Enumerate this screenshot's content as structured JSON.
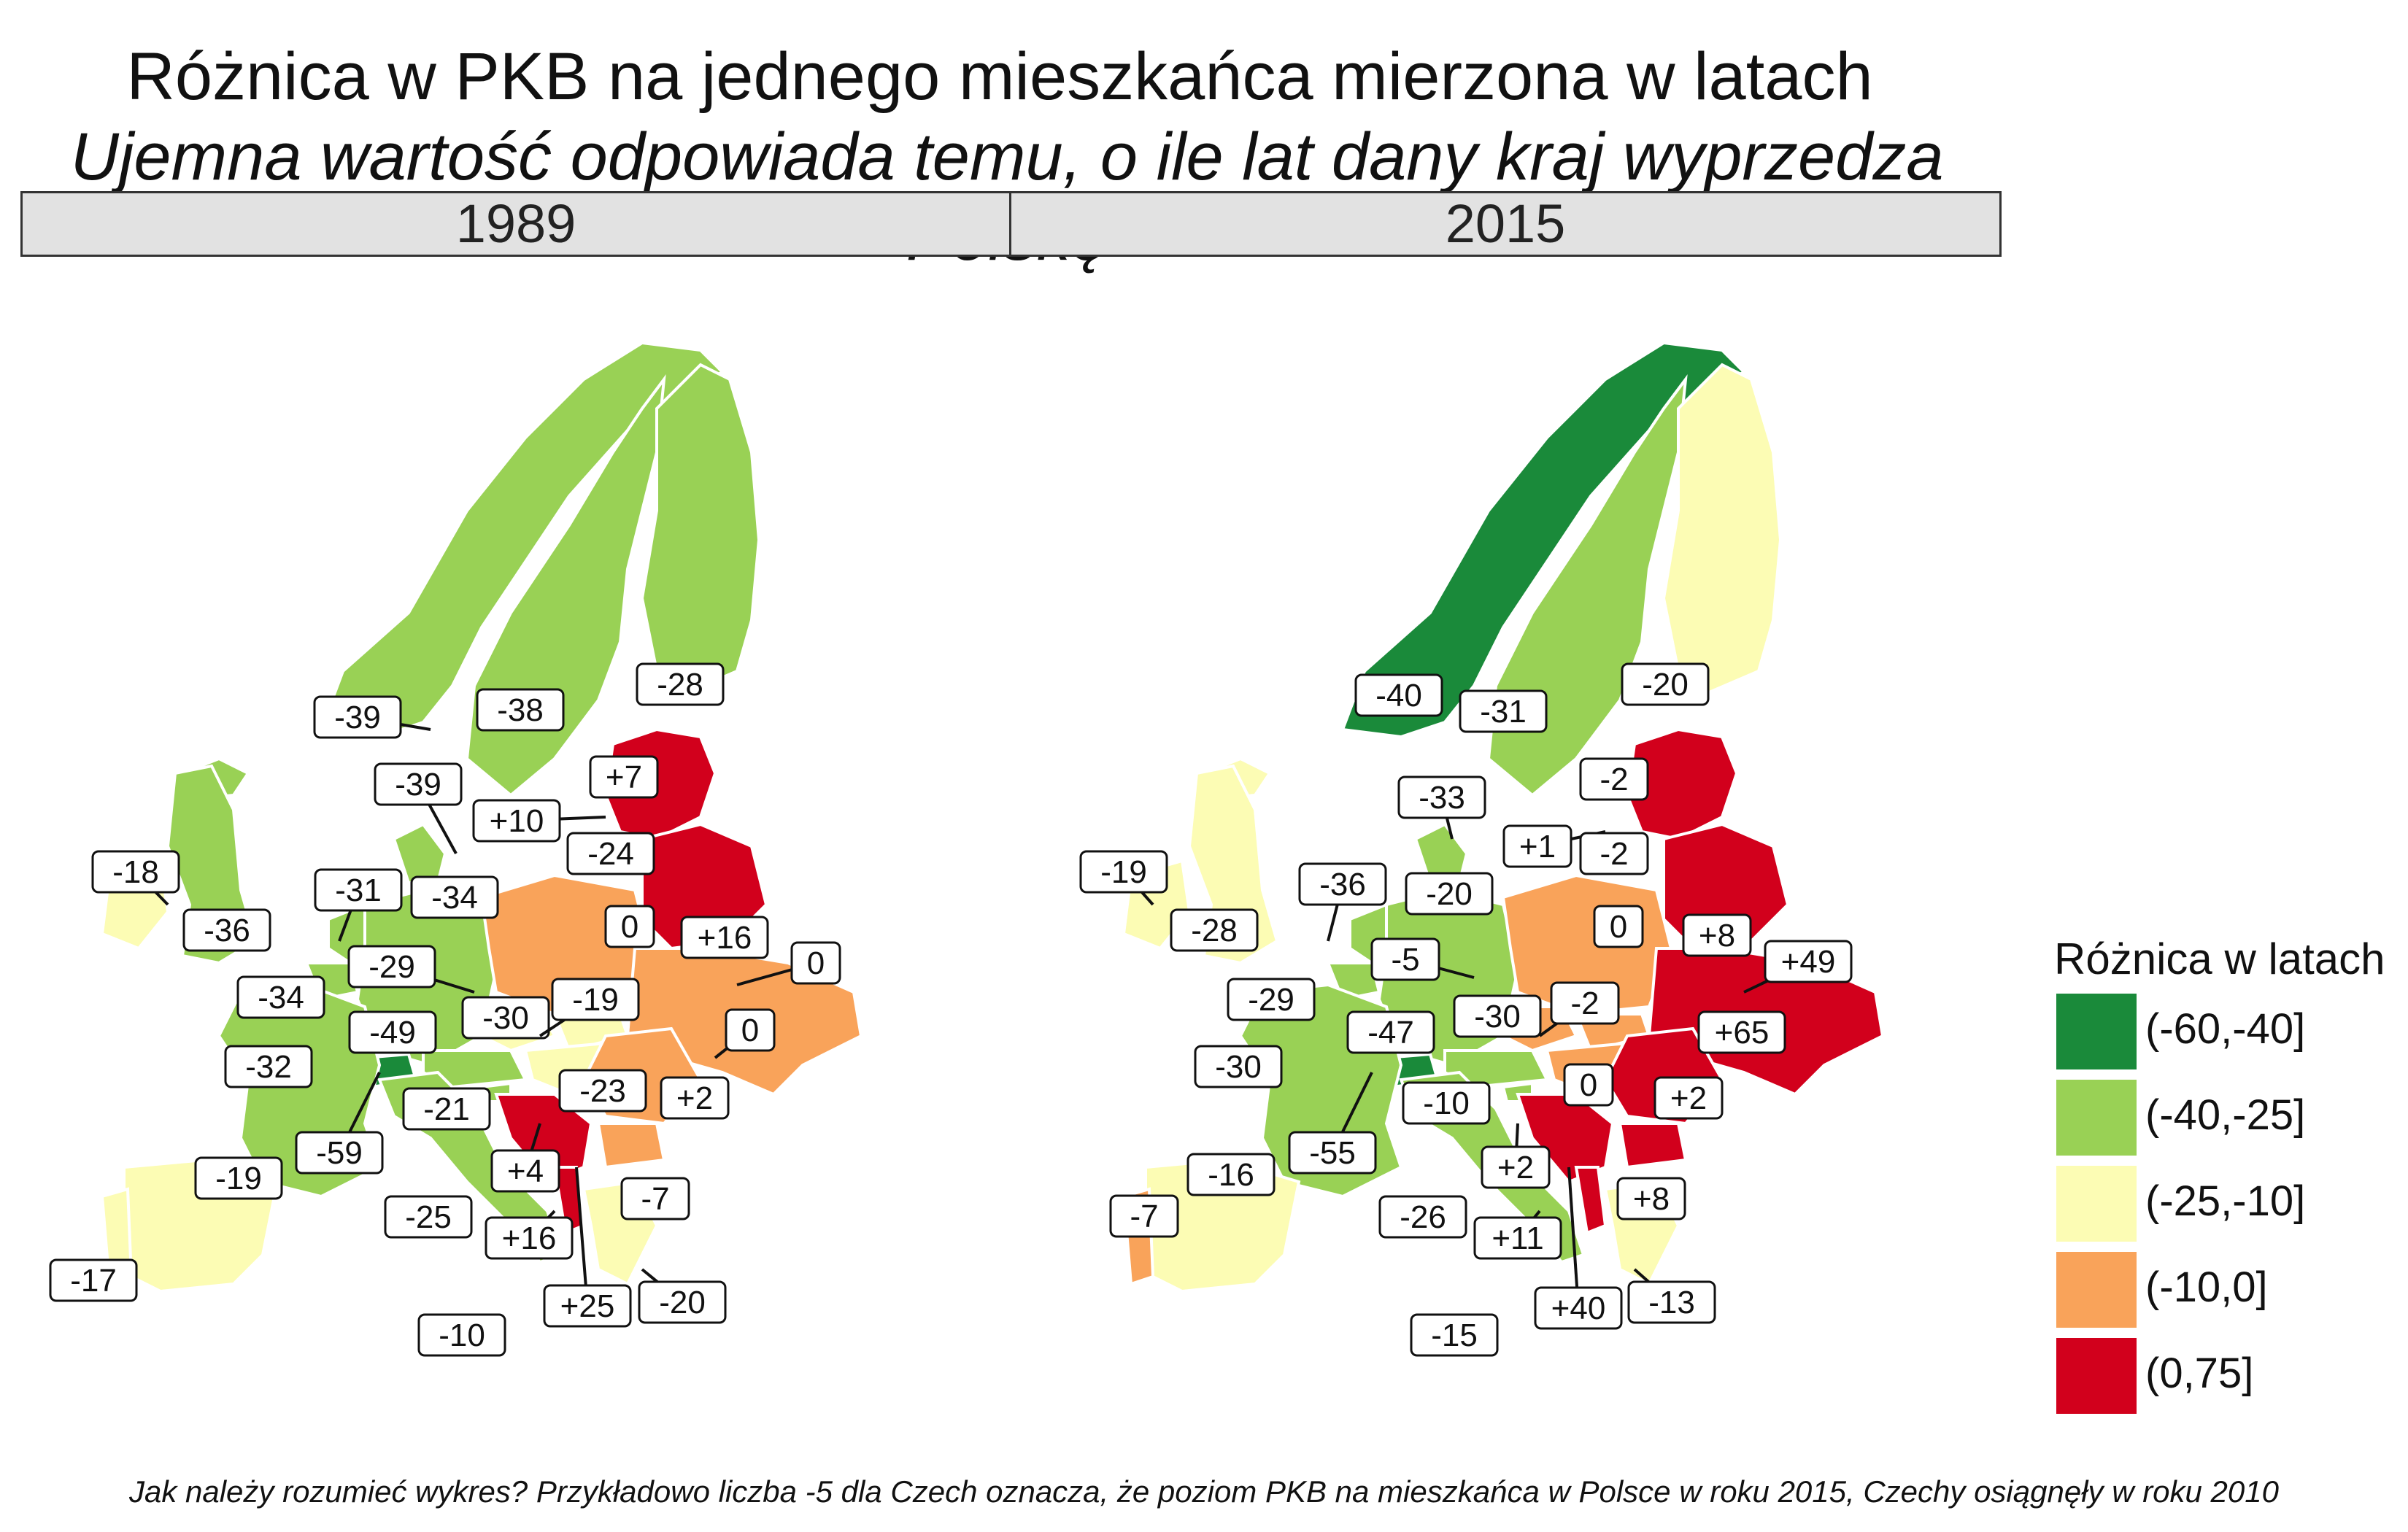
{
  "title": "Różnica w PKB na jednego mieszkańca mierzona w latach",
  "subtitle": "Ujemna wartość odpowiada temu, o ile lat dany kraj wyprzedza Polskę",
  "facets": [
    "1989",
    "2015"
  ],
  "legend": {
    "title": "Różnica w latach",
    "items": [
      {
        "label": "(-60,-40]",
        "color": "#1a8a3a"
      },
      {
        "label": "(-40,-25]",
        "color": "#99d155"
      },
      {
        "label": "(-25,-10]",
        "color": "#fcfcb4"
      },
      {
        "label": "(-10,0]",
        "color": "#f9a35a"
      },
      {
        "label": "(0,75]",
        "color": "#d2001c"
      }
    ]
  },
  "maps": {
    "1989": {
      "labels": [
        "-39",
        "-38",
        "-28",
        "+7",
        "-39",
        "+10",
        "-24",
        "-18",
        "-36",
        "-31",
        "-34",
        "0",
        "+16",
        "-34",
        "-29",
        "-30",
        "-19",
        "0",
        "-32",
        "-49",
        "0",
        "-23",
        "+2",
        "-59",
        "-21",
        "+4",
        "-19",
        "-25",
        "+16",
        "+25",
        "-20",
        "-7",
        "-17",
        "-10"
      ],
      "country_colors": {
        "Norway": "#99d155",
        "Sweden": "#99d155",
        "Finland": "#99d155",
        "Iceland": "#99d155",
        "Ireland": "#fcfcb4",
        "UK": "#99d155",
        "France": "#99d155",
        "Belgium": "#99d155",
        "Netherlands": "#99d155",
        "Denmark": "#99d155",
        "Germany": "#99d155",
        "Switzerland": "#1a8a3a",
        "Austria": "#99d155",
        "Italy": "#99d155",
        "Spain": "#fcfcb4",
        "Portugal": "#fcfcb4",
        "Poland": "#f9a35a",
        "Czechia": "#fcfcb4",
        "Slovakia": "#fcfcb4",
        "Hungary": "#fcfcb4",
        "Romania": "#f9a35a",
        "Bulgaria": "#f9a35a",
        "Greece": "#fcfcb4",
        "Balkans": "#d2001c",
        "Albania": "#d2001c",
        "Baltics": "#d2001c",
        "Belarus": "#d2001c",
        "Ukraine": "#f9a35a",
        "Moldova": "#d2001c",
        "Slovenia": "#99d155"
      }
    },
    "2015": {
      "labels": [
        "-40",
        "-31",
        "-20",
        "-2",
        "-33",
        "+1",
        "-2",
        "-19",
        "-28",
        "-36",
        "-20",
        "0",
        "+8",
        "-29",
        "-5",
        "+49",
        "-30",
        "-2",
        "+65",
        "-30",
        "-47",
        "0",
        "+2",
        "-55",
        "-10",
        "+2",
        "-16",
        "-7",
        "-26",
        "+11",
        "+40",
        "-13",
        "+8",
        "-15"
      ],
      "country_colors": {
        "Norway": "#1a8a3a",
        "Sweden": "#99d155",
        "Finland": "#fcfcb4",
        "Iceland": "#fcfcb4",
        "Ireland": "#fcfcb4",
        "UK": "#fcfcb4",
        "France": "#99d155",
        "Belgium": "#99d155",
        "Netherlands": "#99d155",
        "Denmark": "#99d155",
        "Germany": "#99d155",
        "Switzerland": "#1a8a3a",
        "Austria": "#99d155",
        "Italy": "#99d155",
        "Spain": "#fcfcb4",
        "Portugal": "#f9a35a",
        "Poland": "#f9a35a",
        "Czechia": "#f9a35a",
        "Slovakia": "#f9a35a",
        "Hungary": "#f9a35a",
        "Romania": "#d2001c",
        "Bulgaria": "#d2001c",
        "Greece": "#fcfcb4",
        "Balkans": "#d2001c",
        "Albania": "#d2001c",
        "Baltics": "#d2001c",
        "Belarus": "#d2001c",
        "Ukraine": "#d2001c",
        "Moldova": "#d2001c",
        "Slovenia": "#99d155"
      }
    }
  },
  "caption": "Jak należy rozumieć wykres? Przykładowo liczba -5 dla Czech oznacza, że poziom PKB na mieszkańca w Polsce w roku 2015, Czechy osiągnęły w roku 2010"
}
